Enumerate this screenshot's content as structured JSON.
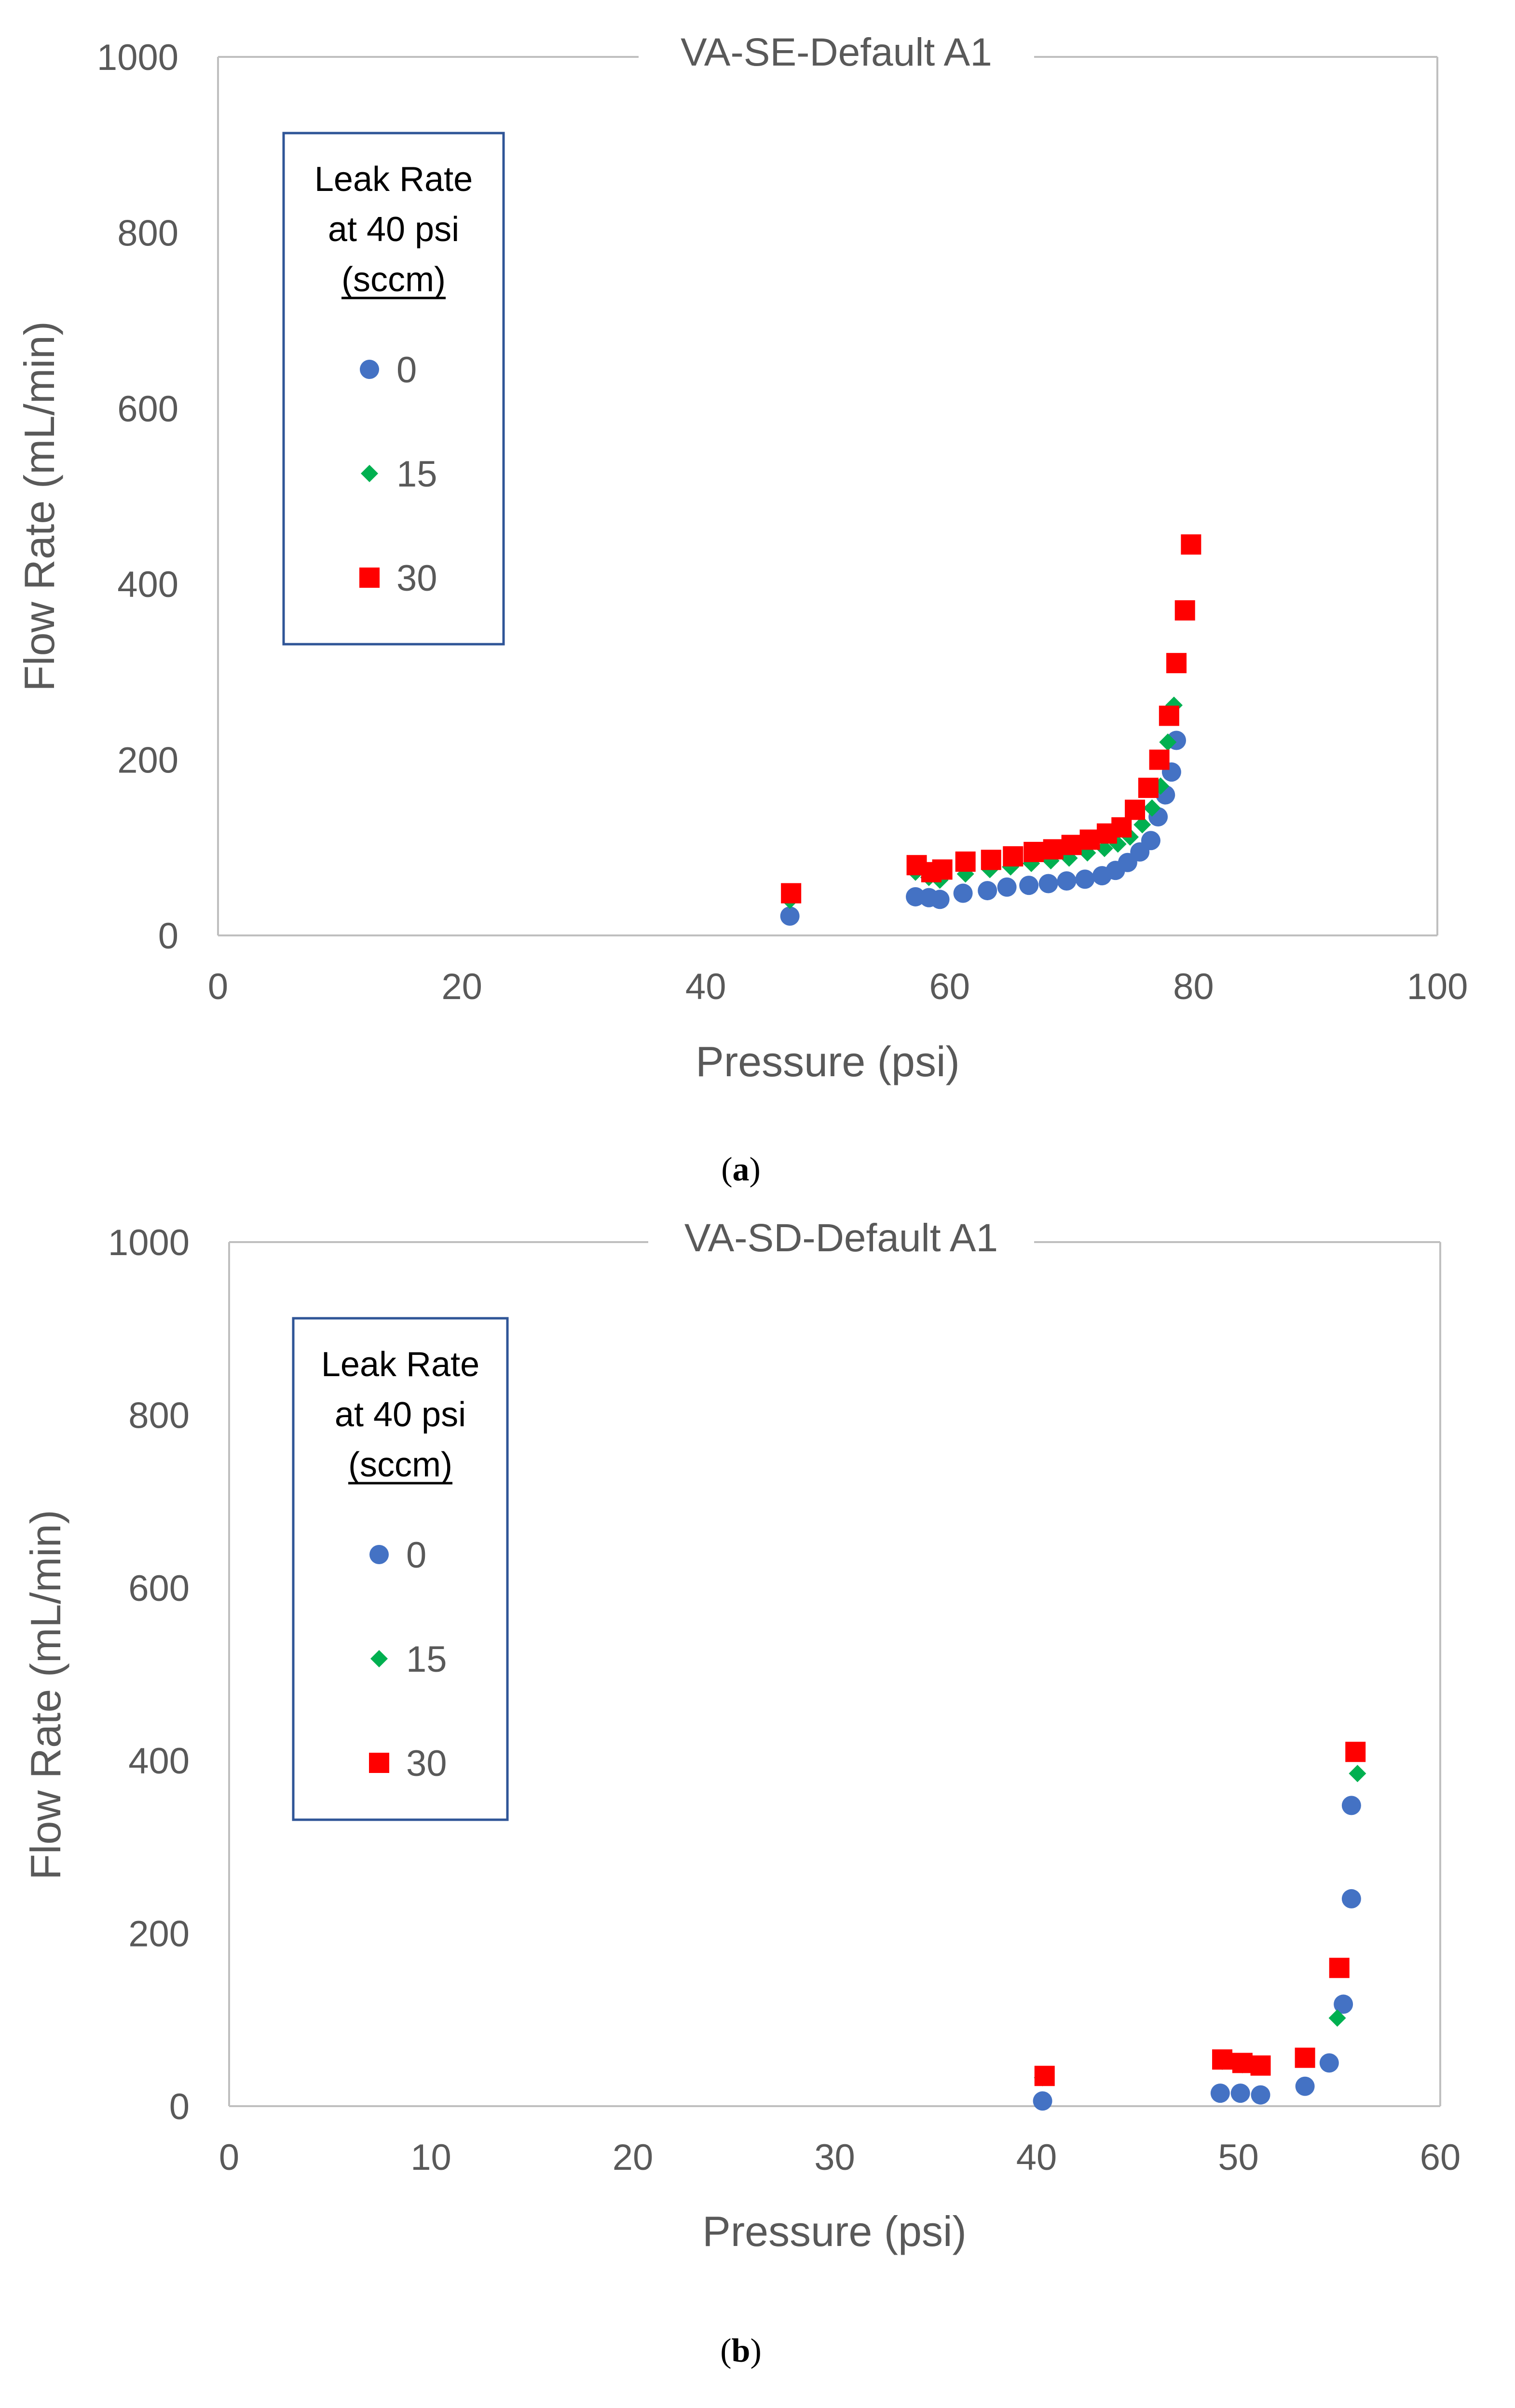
{
  "figure": {
    "caption_a_open": "(",
    "caption_a_letter": "a",
    "caption_a_close": ")",
    "caption_b_open": "(",
    "caption_b_letter": "b",
    "caption_b_close": ")"
  },
  "colors": {
    "series_0": "#4472C4",
    "series_15": "#00B050",
    "series_30": "#FF0000",
    "axis_text": "#595959",
    "frame": "#BFBFBF",
    "legend_border": "#2F5597"
  },
  "chart_data": [
    {
      "type": "scatter",
      "title": "VA-SE-Default A1",
      "xlabel": "Pressure (psi)",
      "ylabel": "Flow Rate (mL/min)",
      "xlim": [
        0,
        100
      ],
      "ylim": [
        0,
        1000
      ],
      "xticks": [
        0,
        20,
        40,
        60,
        80,
        100
      ],
      "yticks": [
        0,
        200,
        400,
        600,
        800,
        1000
      ],
      "grid": false,
      "legend": {
        "title_lines": [
          "Leak Rate",
          "at 40 psi",
          "(sccm)"
        ],
        "position": "top-left"
      },
      "series": [
        {
          "name": "0",
          "marker": "circle",
          "x": [
            46.9,
            57.2,
            58.3,
            59.2,
            61.1,
            63.1,
            64.7,
            66.5,
            68.1,
            69.6,
            71.1,
            72.5,
            73.6,
            74.6,
            75.6,
            76.5,
            77.1,
            77.7,
            78.2,
            78.6
          ],
          "y": [
            22,
            44,
            43,
            41,
            48,
            51,
            55,
            57,
            59,
            62,
            64,
            68,
            74,
            83,
            95,
            108,
            135,
            160,
            186,
            222
          ]
        },
        {
          "name": "15",
          "marker": "diamond",
          "x": [
            46.9,
            57.2,
            58.3,
            59.2,
            61.3,
            63.3,
            65.0,
            66.7,
            68.3,
            69.8,
            71.3,
            72.7,
            73.8,
            74.8,
            75.8,
            76.6,
            77.3,
            77.9,
            78.4
          ],
          "y": [
            40,
            72,
            66,
            63,
            70,
            75,
            78,
            82,
            85,
            88,
            94,
            99,
            104,
            112,
            126,
            145,
            170,
            220,
            262
          ]
        },
        {
          "name": "30",
          "marker": "square",
          "x": [
            47.0,
            57.3,
            58.5,
            59.4,
            61.3,
            63.4,
            65.2,
            66.9,
            68.5,
            70.0,
            71.5,
            72.9,
            74.1,
            75.2,
            76.3,
            77.2,
            78.0,
            78.6,
            79.3,
            79.8
          ],
          "y": [
            48,
            80,
            72,
            75,
            84,
            86,
            90,
            95,
            98,
            103,
            109,
            116,
            123,
            143,
            168,
            200,
            250,
            310,
            370,
            445
          ]
        }
      ]
    },
    {
      "type": "scatter",
      "title": "VA-SD-Default A1",
      "xlabel": "Pressure (psi)",
      "ylabel": "Flow Rate (mL/min)",
      "xlim": [
        0,
        60
      ],
      "ylim": [
        0,
        1000
      ],
      "xticks": [
        0,
        10,
        20,
        30,
        40,
        50,
        60
      ],
      "yticks": [
        0,
        200,
        400,
        600,
        800,
        1000
      ],
      "grid": false,
      "legend": {
        "title_lines": [
          "Leak Rate",
          "at 40 psi",
          "(sccm)"
        ],
        "position": "top-left"
      },
      "series": [
        {
          "name": "0",
          "marker": "circle",
          "x": [
            40.3,
            49.1,
            50.1,
            51.1,
            53.3,
            54.5,
            55.2,
            55.6,
            55.6
          ],
          "y": [
            6,
            15,
            15,
            13,
            23,
            50,
            118,
            240,
            348
          ]
        },
        {
          "name": "15",
          "marker": "diamond",
          "x": [
            40.3,
            49.2,
            50.2,
            51.1,
            53.3,
            54.9,
            55.9
          ],
          "y": [
            33,
            52,
            48,
            46,
            55,
            102,
            385
          ]
        },
        {
          "name": "30",
          "marker": "square",
          "x": [
            40.4,
            49.2,
            50.2,
            51.1,
            53.3,
            55.0,
            55.8
          ],
          "y": [
            35,
            54,
            50,
            47,
            56,
            160,
            410
          ]
        }
      ]
    }
  ]
}
